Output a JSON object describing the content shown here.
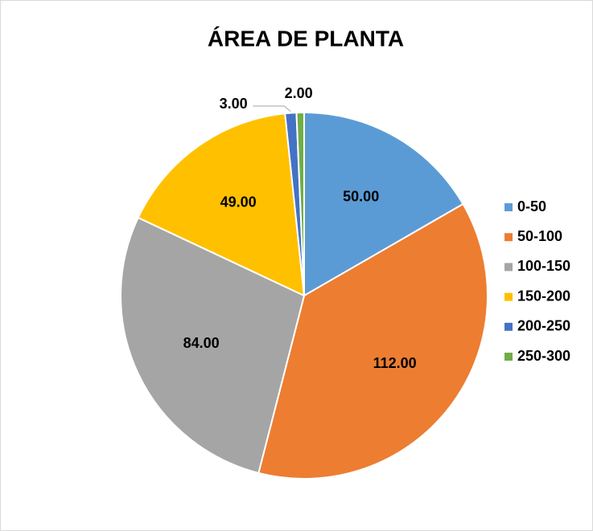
{
  "chart_data": {
    "type": "pie",
    "title": "ÁREA DE PLANTA",
    "categories": [
      "0-50",
      "50-100",
      "100-150",
      "150-200",
      "200-250",
      "250-300"
    ],
    "values": [
      50,
      112,
      84,
      49,
      3,
      2
    ],
    "value_labels": [
      "50.00",
      "112.00",
      "84.00",
      "49.00",
      "3.00",
      "2.00"
    ],
    "colors": [
      "#5b9bd5",
      "#ed7d31",
      "#a5a5a5",
      "#ffc000",
      "#4472c4",
      "#70ad47"
    ],
    "legend": "right"
  }
}
